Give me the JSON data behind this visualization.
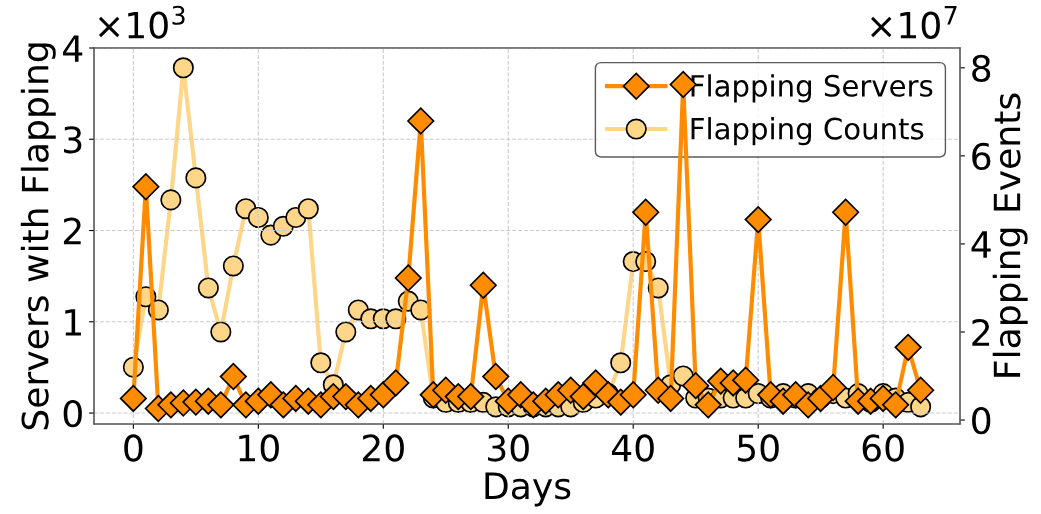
{
  "chart_data": {
    "type": "line",
    "xlabel": "Days",
    "ylabel": "Servers with Flapping",
    "y2label": "Flapping Events",
    "x": [
      0,
      1,
      2,
      3,
      4,
      5,
      6,
      7,
      8,
      9,
      10,
      11,
      12,
      13,
      14,
      15,
      16,
      17,
      18,
      19,
      20,
      21,
      22,
      23,
      24,
      25,
      26,
      27,
      28,
      29,
      30,
      31,
      32,
      33,
      34,
      35,
      36,
      37,
      38,
      39,
      40,
      41,
      42,
      43,
      44,
      45,
      46,
      47,
      48,
      49,
      50,
      51,
      52,
      53,
      54,
      55,
      56,
      57,
      58,
      59,
      60,
      61,
      62,
      63
    ],
    "series": [
      {
        "name": "Flapping Servers",
        "color": "#ff8c00",
        "marker": "diamond",
        "axis": "y",
        "values": [
          0.16,
          2.48,
          0.05,
          0.09,
          0.11,
          0.12,
          0.13,
          0.09,
          0.4,
          0.09,
          0.13,
          0.2,
          0.09,
          0.16,
          0.13,
          0.09,
          0.18,
          0.18,
          0.09,
          0.16,
          0.2,
          0.33,
          1.48,
          3.2,
          0.2,
          0.25,
          0.18,
          0.18,
          1.4,
          0.4,
          0.13,
          0.2,
          0.09,
          0.13,
          0.2,
          0.25,
          0.18,
          0.33,
          0.2,
          0.12,
          0.2,
          2.2,
          0.25,
          0.16,
          3.6,
          0.3,
          0.09,
          0.35,
          0.33,
          0.36,
          2.12,
          0.2,
          0.13,
          0.2,
          0.09,
          0.16,
          0.28,
          2.2,
          0.13,
          0.13,
          0.16,
          0.09,
          0.72,
          0.25
        ]
      },
      {
        "name": "Flapping Counts",
        "color": "#fdd68a",
        "marker": "circle",
        "axis": "y2",
        "values": [
          1.2,
          2.8,
          2.5,
          5.0,
          8.0,
          5.5,
          3.0,
          2.0,
          3.5,
          4.8,
          4.6,
          4.2,
          4.4,
          4.6,
          4.8,
          1.3,
          0.8,
          2.0,
          2.5,
          2.3,
          2.3,
          2.3,
          2.7,
          2.5,
          0.5,
          0.4,
          0.4,
          0.4,
          0.4,
          0.3,
          0.3,
          0.3,
          0.3,
          0.3,
          0.3,
          0.3,
          0.4,
          0.5,
          0.6,
          1.3,
          3.6,
          3.6,
          3.0,
          0.8,
          1.0,
          0.5,
          0.5,
          0.5,
          0.5,
          0.5,
          0.6,
          0.5,
          0.6,
          0.5,
          0.6,
          0.5,
          0.6,
          0.5,
          0.6,
          0.4,
          0.6,
          0.5,
          0.4,
          0.3
        ]
      }
    ],
    "xlim": [
      -3.15,
      66.15
    ],
    "xticks": [
      0,
      10,
      20,
      30,
      40,
      50,
      60
    ],
    "ylim": [
      -0.12,
      4
    ],
    "yticks": [
      0,
      1,
      2,
      3,
      4
    ],
    "y2lim": [
      -0.09,
      8.45
    ],
    "y2ticks": [
      0,
      2,
      4,
      6,
      8
    ],
    "annotations": [
      "×10$^{3}$",
      "×10$^{7}$"
    ],
    "grid": true,
    "legend": "top right",
    "line_style": "solid"
  }
}
